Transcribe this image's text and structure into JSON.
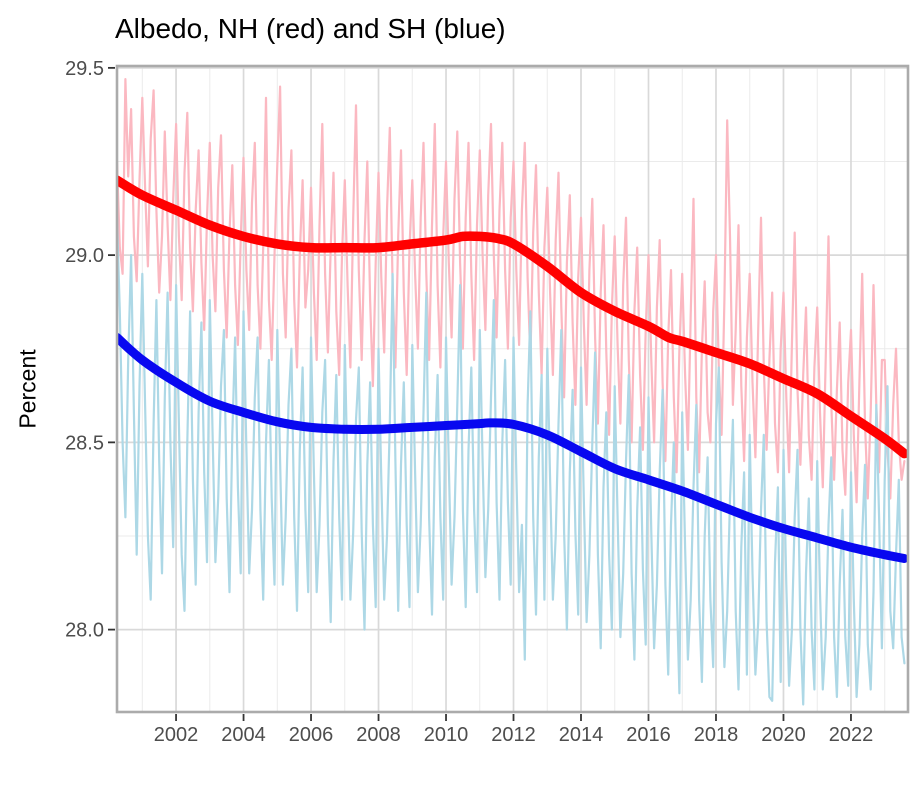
{
  "title": "Albedo, NH (red) and SH (blue)",
  "y_axis": {
    "label": "Percent",
    "tick_labels": [
      "29.5",
      "29.0",
      "28.5",
      "28.0"
    ],
    "tick_values": [
      29.5,
      29.0,
      28.5,
      28.0
    ],
    "minor_values": [
      29.25,
      28.75,
      28.25
    ],
    "range": [
      27.78,
      29.505
    ]
  },
  "x_axis": {
    "tick_labels": [
      "2002",
      "2004",
      "2006",
      "2008",
      "2010",
      "2012",
      "2014",
      "2016",
      "2018",
      "2020",
      "2022"
    ],
    "tick_values": [
      2002,
      2004,
      2006,
      2008,
      2010,
      2012,
      2014,
      2016,
      2018,
      2020,
      2022
    ],
    "minor_values": [
      2001,
      2003,
      2005,
      2007,
      2009,
      2011,
      2013,
      2015,
      2017,
      2019,
      2021,
      2023
    ],
    "range": [
      2000.25,
      2023.69
    ]
  },
  "colors": {
    "nh_monthly": "#FBB8C1",
    "sh_monthly": "#ADD8E6",
    "nh_trend": "#FF0000",
    "sh_trend": "#0808F0",
    "grid_major": "#D9D9D9",
    "grid_minor": "#EBEBEB",
    "panel_border": "#ABABAB",
    "tick_mark": "#333333",
    "tick_label": "#4D4D4D",
    "title_text": "#000000"
  },
  "chart_data": {
    "type": "line",
    "title": "Albedo, NH (red) and SH (blue)",
    "xlabel": "",
    "ylabel": "Percent",
    "xlim": [
      2000.25,
      2023.69
    ],
    "ylim": [
      27.78,
      29.505
    ],
    "grid": true,
    "legend": "none (colors described in title)",
    "series": [
      {
        "name": "NH monthly albedo",
        "color_key": "nh_monthly",
        "width": 2.2,
        "smooth": false,
        "start": 2000.25,
        "step": 0.0833333,
        "values": [
          29.25,
          29.02,
          28.95,
          29.47,
          29.21,
          29.39,
          29.05,
          28.93,
          29.2,
          29.42,
          29.18,
          28.97,
          29.31,
          29.44,
          29.12,
          28.9,
          29.05,
          29.33,
          29.08,
          28.88,
          29.15,
          29.35,
          29.05,
          28.88,
          29.22,
          29.38,
          29.02,
          28.85,
          29.12,
          29.28,
          28.98,
          28.8,
          29.1,
          29.3,
          29.0,
          28.85,
          29.18,
          29.32,
          28.96,
          28.78,
          29.06,
          29.24,
          28.92,
          28.76,
          29.04,
          29.26,
          28.96,
          28.8,
          29.14,
          29.3,
          28.92,
          28.75,
          29.02,
          29.42,
          28.88,
          28.72,
          29.0,
          29.24,
          29.45,
          28.95,
          28.78,
          29.12,
          29.28,
          28.88,
          28.7,
          29.0,
          29.2,
          28.86,
          28.96,
          29.18,
          28.9,
          28.72,
          29.08,
          29.35,
          28.95,
          28.74,
          29.02,
          29.22,
          28.85,
          28.68,
          29.0,
          29.2,
          28.92,
          28.7,
          29.1,
          29.4,
          28.96,
          28.72,
          29.04,
          29.25,
          28.88,
          28.65,
          28.98,
          29.22,
          28.94,
          28.74,
          29.12,
          29.34,
          28.92,
          28.7,
          29.05,
          29.28,
          28.9,
          28.68,
          29.02,
          29.2,
          28.95,
          28.75,
          29.1,
          29.3,
          28.95,
          28.72,
          29.08,
          29.35,
          28.92,
          28.7,
          29.05,
          29.25,
          28.98,
          28.78,
          29.15,
          29.33,
          28.98,
          28.75,
          29.1,
          29.3,
          28.95,
          28.72,
          29.08,
          29.28,
          29.0,
          28.8,
          29.16,
          29.35,
          29.0,
          28.78,
          29.12,
          29.3,
          28.96,
          28.75,
          29.1,
          29.25,
          28.96,
          28.76,
          29.12,
          29.3,
          28.94,
          28.72,
          29.06,
          29.24,
          28.9,
          28.68,
          29.02,
          29.18,
          28.9,
          28.68,
          29.04,
          29.22,
          28.86,
          28.62,
          28.98,
          29.16,
          28.82,
          28.6,
          28.94,
          29.1,
          28.82,
          28.6,
          28.96,
          29.15,
          28.78,
          28.55,
          28.9,
          29.08,
          28.74,
          28.52,
          28.86,
          29.05,
          28.76,
          28.55,
          28.92,
          29.1,
          28.72,
          28.5,
          28.85,
          29.02,
          28.68,
          28.48,
          28.8,
          29.0,
          28.72,
          28.5,
          28.86,
          29.04,
          28.66,
          28.45,
          28.78,
          28.96,
          28.62,
          28.42,
          28.75,
          28.95,
          28.68,
          28.48,
          28.84,
          29.15,
          28.62,
          28.42,
          28.75,
          28.93,
          28.58,
          28.5,
          28.85,
          29.0,
          28.7,
          28.52,
          28.88,
          29.36,
          29.05,
          28.6,
          28.8,
          29.08,
          28.65,
          28.45,
          28.78,
          28.95,
          28.66,
          28.46,
          28.8,
          29.1,
          28.7,
          28.48,
          28.72,
          28.9,
          28.55,
          28.42,
          28.75,
          28.9,
          28.62,
          28.42,
          28.76,
          29.06,
          28.64,
          28.44,
          28.68,
          28.86,
          28.52,
          28.4,
          28.7,
          28.86,
          28.58,
          28.38,
          28.72,
          29.05,
          28.6,
          28.4,
          28.64,
          28.82,
          28.48,
          28.36,
          28.66,
          28.8,
          28.52,
          28.34,
          28.66,
          28.95,
          28.55,
          28.35,
          28.58,
          28.92,
          28.6,
          28.42,
          28.72,
          28.72,
          28.48,
          28.35,
          28.6,
          28.75,
          28.5,
          28.4,
          28.45
        ]
      },
      {
        "name": "SH monthly albedo",
        "color_key": "sh_monthly",
        "width": 2.2,
        "smooth": false,
        "start": 2000.25,
        "step": 0.0833333,
        "values": [
          29.1,
          28.85,
          28.5,
          28.3,
          28.72,
          29.0,
          28.58,
          28.2,
          28.65,
          28.95,
          28.6,
          28.25,
          28.08,
          28.55,
          28.88,
          28.45,
          28.15,
          28.62,
          28.9,
          28.5,
          28.22,
          28.92,
          28.55,
          28.2,
          28.05,
          28.5,
          28.85,
          28.4,
          28.12,
          28.58,
          28.82,
          28.42,
          28.18,
          28.88,
          28.52,
          28.18,
          28.35,
          28.65,
          28.8,
          28.35,
          28.1,
          28.52,
          28.78,
          28.38,
          28.15,
          28.85,
          28.48,
          28.15,
          28.32,
          28.62,
          28.78,
          28.32,
          28.08,
          28.5,
          28.72,
          28.35,
          28.12,
          28.8,
          28.45,
          28.12,
          28.3,
          28.6,
          28.75,
          28.3,
          28.05,
          28.48,
          28.7,
          28.32,
          28.1,
          28.78,
          28.42,
          28.1,
          28.28,
          28.58,
          28.72,
          28.28,
          28.02,
          28.45,
          28.68,
          28.3,
          28.08,
          28.76,
          28.4,
          28.08,
          28.26,
          28.56,
          28.7,
          28.26,
          28.0,
          28.44,
          28.66,
          28.28,
          28.06,
          28.75,
          28.4,
          28.08,
          28.25,
          28.55,
          28.95,
          28.45,
          28.05,
          28.44,
          28.66,
          28.28,
          28.06,
          28.76,
          28.42,
          28.1,
          28.28,
          28.58,
          28.9,
          28.3,
          28.04,
          28.46,
          28.68,
          28.3,
          28.08,
          28.78,
          28.44,
          28.12,
          28.3,
          28.6,
          28.92,
          28.32,
          28.06,
          28.48,
          28.7,
          28.32,
          28.1,
          28.8,
          28.45,
          28.14,
          28.32,
          28.62,
          28.88,
          28.34,
          28.08,
          28.5,
          28.72,
          28.34,
          28.12,
          28.78,
          28.42,
          28.1,
          28.28,
          27.92,
          28.6,
          28.85,
          28.3,
          28.04,
          28.46,
          28.68,
          28.08,
          28.75,
          28.4,
          28.08,
          28.25,
          28.55,
          28.8,
          28.26,
          28.0,
          28.42,
          28.64,
          28.26,
          28.04,
          28.7,
          28.35,
          28.02,
          28.2,
          28.5,
          28.74,
          28.2,
          27.95,
          28.38,
          28.58,
          28.2,
          28.0,
          28.65,
          28.3,
          27.98,
          28.15,
          28.45,
          28.68,
          28.15,
          27.92,
          28.32,
          28.54,
          28.16,
          27.96,
          28.62,
          28.26,
          27.95,
          28.12,
          28.42,
          28.64,
          28.12,
          27.88,
          28.28,
          28.5,
          28.12,
          27.83,
          28.58,
          28.22,
          27.92,
          28.08,
          28.38,
          28.6,
          28.08,
          27.86,
          28.25,
          28.46,
          28.08,
          27.9,
          28.55,
          28.7,
          28.18,
          27.9,
          28.05,
          28.35,
          28.56,
          28.05,
          27.84,
          28.22,
          28.42,
          27.88,
          28.52,
          28.15,
          27.88,
          28.02,
          28.32,
          28.52,
          28.02,
          27.82,
          27.81,
          28.18,
          28.38,
          27.86,
          28.48,
          28.12,
          27.85,
          28.0,
          28.3,
          28.48,
          28.0,
          27.8,
          28.15,
          28.35,
          28.0,
          27.84,
          28.45,
          28.1,
          27.84,
          27.98,
          28.28,
          28.46,
          27.98,
          27.82,
          28.12,
          28.32,
          27.98,
          27.85,
          28.42,
          28.08,
          27.82,
          27.96,
          28.25,
          28.44,
          27.96,
          27.84,
          28.1,
          28.6,
          28.3,
          27.95,
          28.4,
          28.65,
          28.05,
          27.95,
          28.2,
          28.4,
          27.98,
          27.91
        ]
      },
      {
        "name": "NH smoothed trend",
        "color_key": "nh_trend",
        "width": 9.5,
        "smooth": true,
        "points": [
          [
            2000.25,
            29.2
          ],
          [
            2001,
            29.16
          ],
          [
            2002,
            29.12
          ],
          [
            2003,
            29.08
          ],
          [
            2004,
            29.05
          ],
          [
            2005,
            29.03
          ],
          [
            2006,
            29.02
          ],
          [
            2007,
            29.02
          ],
          [
            2008,
            29.02
          ],
          [
            2009,
            29.03
          ],
          [
            2010,
            29.04
          ],
          [
            2010.5,
            29.05
          ],
          [
            2011,
            29.05
          ],
          [
            2011.5,
            29.045
          ],
          [
            2012,
            29.03
          ],
          [
            2013,
            28.97
          ],
          [
            2014,
            28.9
          ],
          [
            2015,
            28.85
          ],
          [
            2016,
            28.81
          ],
          [
            2016.6,
            28.78
          ],
          [
            2017,
            28.77
          ],
          [
            2018,
            28.74
          ],
          [
            2019,
            28.71
          ],
          [
            2020,
            28.67
          ],
          [
            2021,
            28.63
          ],
          [
            2022,
            28.57
          ],
          [
            2023,
            28.51
          ],
          [
            2023.58,
            28.47
          ]
        ]
      },
      {
        "name": "SH smoothed trend",
        "color_key": "sh_trend",
        "width": 9,
        "smooth": true,
        "points": [
          [
            2000.25,
            28.78
          ],
          [
            2001,
            28.72
          ],
          [
            2002,
            28.66
          ],
          [
            2003,
            28.61
          ],
          [
            2004,
            28.58
          ],
          [
            2005,
            28.555
          ],
          [
            2006,
            28.54
          ],
          [
            2007,
            28.535
          ],
          [
            2008,
            28.535
          ],
          [
            2009,
            28.54
          ],
          [
            2010,
            28.545
          ],
          [
            2011,
            28.55
          ],
          [
            2011.3,
            28.552
          ],
          [
            2012,
            28.548
          ],
          [
            2013,
            28.52
          ],
          [
            2014,
            28.475
          ],
          [
            2015,
            28.43
          ],
          [
            2016,
            28.4
          ],
          [
            2017,
            28.37
          ],
          [
            2018,
            28.335
          ],
          [
            2019,
            28.3
          ],
          [
            2020,
            28.27
          ],
          [
            2021,
            28.245
          ],
          [
            2022,
            28.22
          ],
          [
            2023,
            28.2
          ],
          [
            2023.58,
            28.19
          ]
        ]
      }
    ]
  }
}
